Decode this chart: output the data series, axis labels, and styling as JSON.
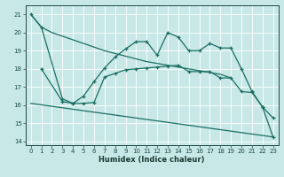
{
  "xlabel": "Humidex (Indice chaleur)",
  "xlim": [
    -0.5,
    23.5
  ],
  "ylim": [
    13.8,
    21.5
  ],
  "yticks": [
    14,
    15,
    16,
    17,
    18,
    19,
    20,
    21
  ],
  "xticks": [
    0,
    1,
    2,
    3,
    4,
    5,
    6,
    7,
    8,
    9,
    10,
    11,
    12,
    13,
    14,
    15,
    16,
    17,
    18,
    19,
    20,
    21,
    22,
    23
  ],
  "background_color": "#c8e8e8",
  "grid_color": "#ffffff",
  "line_color": "#1a6e62",
  "line1_x": [
    0,
    1,
    2,
    3,
    4,
    5,
    6,
    7,
    8,
    9,
    10,
    11,
    12,
    13,
    14,
    15,
    16,
    17,
    18,
    19
  ],
  "line1_y": [
    21.0,
    20.3,
    20.0,
    19.8,
    19.6,
    19.4,
    19.2,
    19.0,
    18.85,
    18.7,
    18.55,
    18.4,
    18.3,
    18.2,
    18.1,
    18.0,
    17.9,
    17.8,
    17.7,
    17.5
  ],
  "line2_x": [
    0,
    1,
    3,
    4,
    5,
    6,
    7,
    8,
    9,
    10,
    11,
    12,
    13,
    14,
    15,
    16,
    17,
    18,
    19,
    20,
    21,
    22,
    23
  ],
  "line2_y": [
    21.0,
    20.3,
    16.35,
    16.1,
    16.5,
    17.3,
    18.05,
    18.65,
    19.1,
    19.5,
    19.5,
    18.75,
    20.0,
    19.75,
    19.0,
    19.0,
    19.4,
    19.15,
    19.15,
    18.0,
    16.75,
    15.9,
    15.3
  ],
  "line3_x": [
    1,
    3,
    4,
    5,
    6,
    7,
    8,
    9,
    10,
    11,
    12,
    13,
    14,
    15,
    16,
    17,
    18,
    19,
    20,
    21,
    22,
    23
  ],
  "line3_y": [
    18.0,
    16.2,
    16.1,
    16.1,
    16.15,
    17.55,
    17.75,
    17.95,
    18.0,
    18.05,
    18.1,
    18.15,
    18.2,
    17.85,
    17.85,
    17.85,
    17.5,
    17.5,
    16.75,
    16.7,
    15.9,
    14.25
  ],
  "line4_x": [
    0,
    23
  ],
  "line4_y": [
    16.1,
    14.25
  ]
}
